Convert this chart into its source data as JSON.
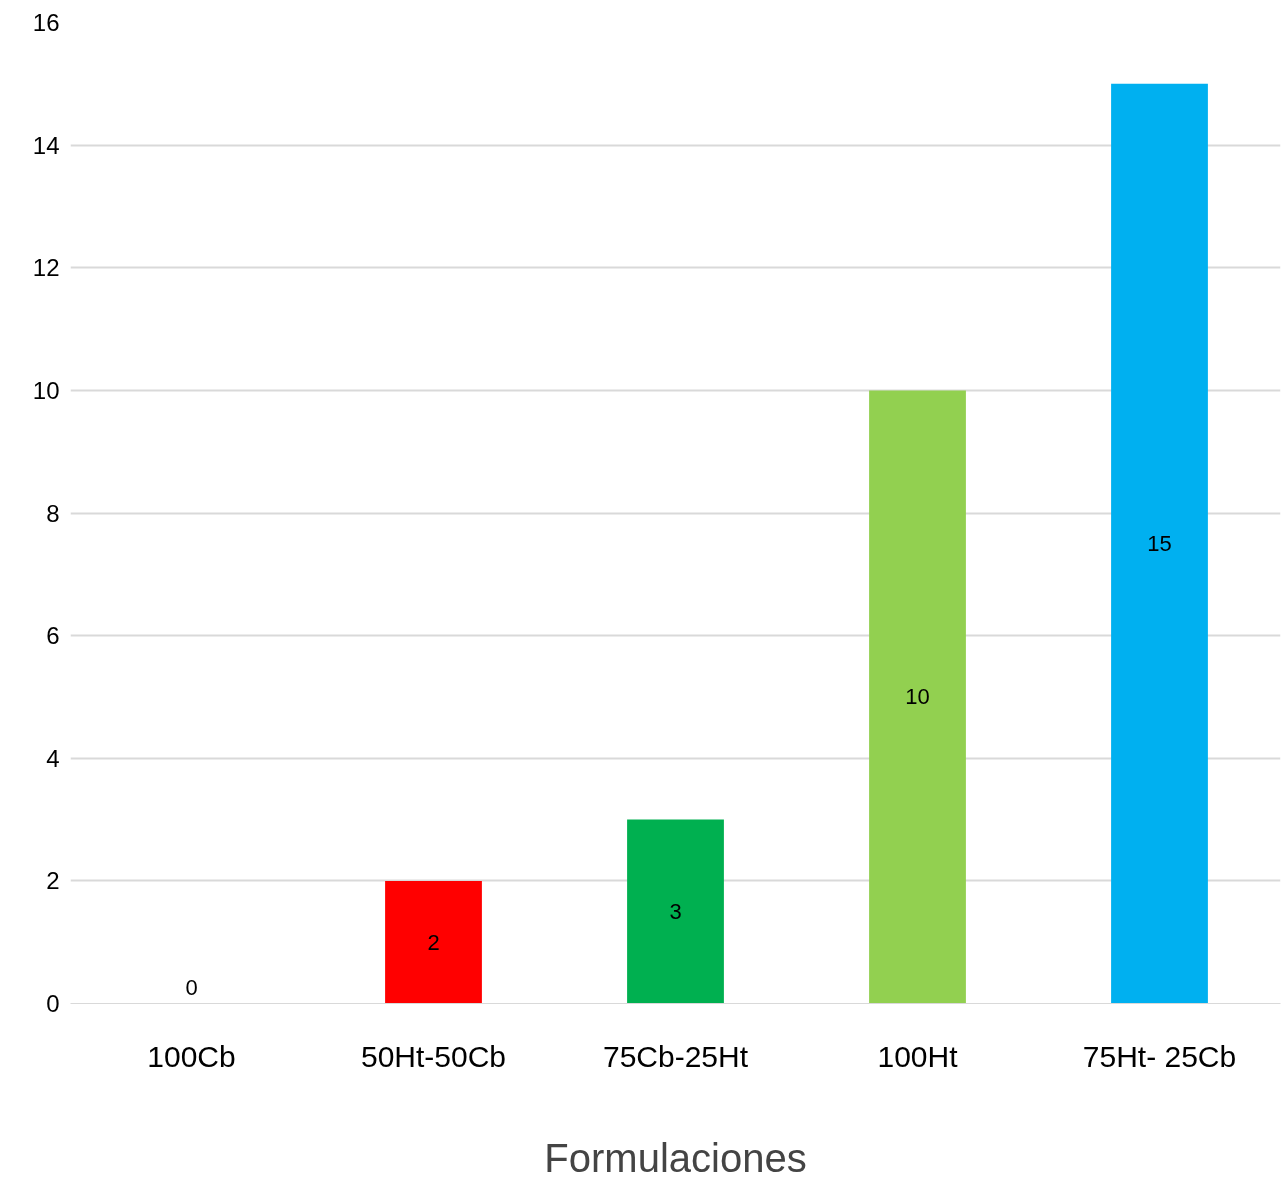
{
  "chart_data": {
    "type": "bar",
    "xlabel": "Formulaciones",
    "categories": [
      "100Cb",
      "50Ht-50Cb",
      "75Cb-25Ht",
      "100Ht",
      "75Ht- 25Cb"
    ],
    "values": [
      0,
      2,
      3,
      10,
      15
    ],
    "colors": [
      "#ffc000",
      "#ff0000",
      "#00b050",
      "#92d050",
      "#00b0f0"
    ],
    "ylim": [
      0,
      16
    ],
    "yticks": [
      0,
      2,
      4,
      6,
      8,
      10,
      12,
      14,
      16
    ],
    "grid": "y",
    "data_labels": true
  }
}
